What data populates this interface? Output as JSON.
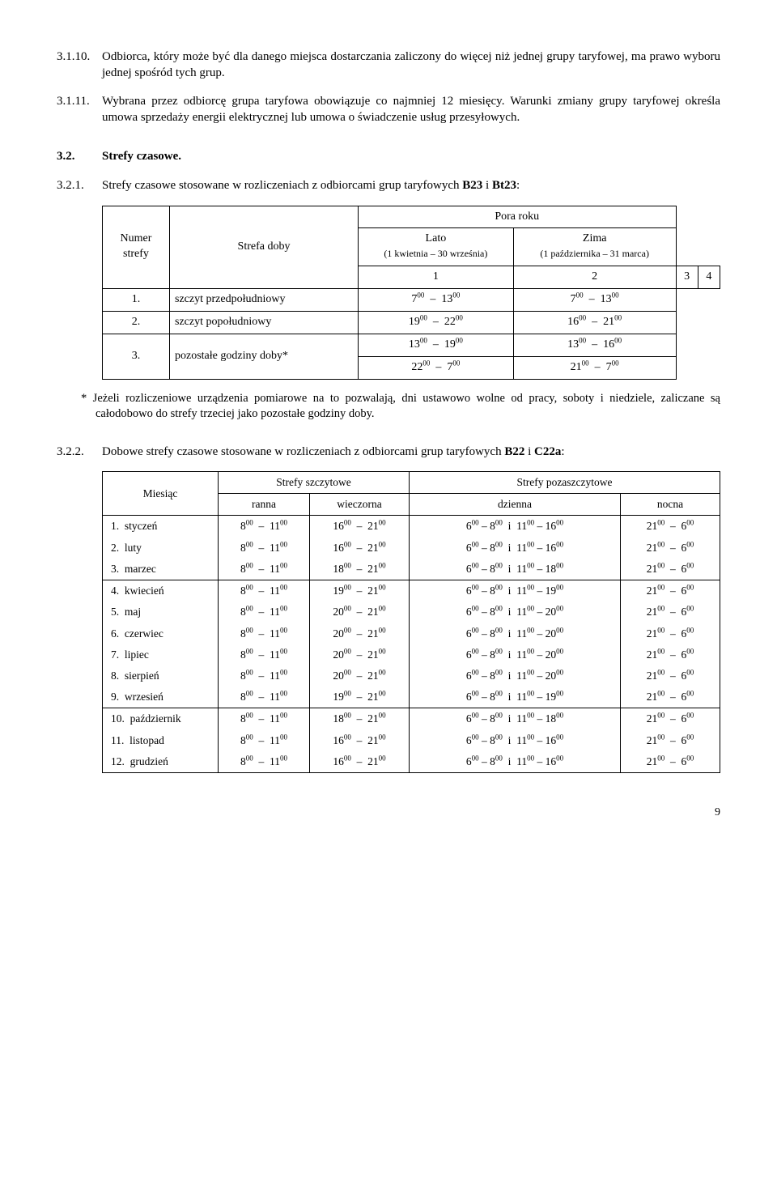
{
  "p_3_1_10": {
    "num": "3.1.10.",
    "text": "Odbiorca, który może być dla danego miejsca dostarczania zaliczony do więcej niż jednej grupy taryfowej, ma prawo wyboru jednej spośród tych grup."
  },
  "p_3_1_11": {
    "num": "3.1.11.",
    "text": "Wybrana przez odbiorcę grupa taryfowa obowiązuje co najmniej 12 miesięcy. Warunki zmiany grupy taryfowej określa umowa sprzedaży energii elektrycznej lub umowa o świadczenie usług przesyłowych."
  },
  "h_3_2": {
    "num": "3.2.",
    "text": "Strefy czasowe."
  },
  "p_3_2_1": {
    "num": "3.2.1.",
    "text_before": "Strefy czasowe stosowane w rozliczeniach z odbiorcami grup taryfowych ",
    "b1": "B23",
    "mid": "  i  ",
    "b2": "Bt23",
    "text_after": ":"
  },
  "t1": {
    "col_numer": "Numer strefy",
    "col_strefa": "Strefa doby",
    "col_pora": "Pora roku",
    "col_lato": "Lato",
    "col_lato_sub": "(1 kwietnia – 30 września)",
    "col_zima": "Zima",
    "col_zima_sub": "(1 października – 31 marca)",
    "hdr": [
      "1",
      "2",
      "3",
      "4"
    ],
    "rows": [
      {
        "n": "1.",
        "label": "szczyt przedpołudniowy",
        "lato_a": "7",
        "lato_b": "13",
        "zima_a": "7",
        "zima_b": "13"
      },
      {
        "n": "2.",
        "label": "szczyt popołudniowy",
        "lato_a": "19",
        "lato_b": "22",
        "zima_a": "16",
        "zima_b": "21"
      },
      {
        "n": "3.",
        "label": "pozostałe godziny doby*",
        "lato_a": "13",
        "lato_b": "19",
        "zima_a": "13",
        "zima_b": "16"
      }
    ],
    "extra": {
      "lato_a": "22",
      "lato_b": "7",
      "zima_a": "21",
      "zima_b": "7"
    }
  },
  "footnote": "*  Jeżeli rozliczeniowe urządzenia pomiarowe na to pozwalają, dni ustawowo wolne od pracy, soboty i niedziele, zaliczane są całodobowo do strefy trzeciej jako pozostałe godziny doby.",
  "p_3_2_2": {
    "num": "3.2.2.",
    "text_before": "Dobowe strefy czasowe stosowane w rozliczeniach z odbiorcami grup taryfowych ",
    "b1": "B22",
    "mid": " i ",
    "b2": "C22a",
    "text_after": ":"
  },
  "t2": {
    "col_miesiac": "Miesiąc",
    "col_szczyt": "Strefy szczytowe",
    "col_poza": "Strefy pozaszczytowe",
    "sub": [
      "ranna",
      "wieczorna",
      "dzienna",
      "nocna"
    ],
    "groups": [
      {
        "rows": [
          {
            "n": "1.",
            "m": "styczeń",
            "r1": "8",
            "r2": "11",
            "w1": "16",
            "w2": "21",
            "d1": "6",
            "d2": "8",
            "d3": "11",
            "d4": "16",
            "n1": "21",
            "n2": "6"
          },
          {
            "n": "2.",
            "m": "luty",
            "r1": "8",
            "r2": "11",
            "w1": "16",
            "w2": "21",
            "d1": "6",
            "d2": "8",
            "d3": "11",
            "d4": "16",
            "n1": "21",
            "n2": "6"
          },
          {
            "n": "3.",
            "m": "marzec",
            "r1": "8",
            "r2": "11",
            "w1": "18",
            "w2": "21",
            "d1": "6",
            "d2": "8",
            "d3": "11",
            "d4": "18",
            "n1": "21",
            "n2": "6"
          }
        ]
      },
      {
        "rows": [
          {
            "n": "4.",
            "m": "kwiecień",
            "r1": "8",
            "r2": "11",
            "w1": "19",
            "w2": "21",
            "d1": "6",
            "d2": "8",
            "d3": "11",
            "d4": "19",
            "n1": "21",
            "n2": "6"
          },
          {
            "n": "5.",
            "m": "maj",
            "r1": "8",
            "r2": "11",
            "w1": "20",
            "w2": "21",
            "d1": "6",
            "d2": "8",
            "d3": "11",
            "d4": "20",
            "n1": "21",
            "n2": "6"
          },
          {
            "n": "6.",
            "m": "czerwiec",
            "r1": "8",
            "r2": "11",
            "w1": "20",
            "w2": "21",
            "d1": "6",
            "d2": "8",
            "d3": "11",
            "d4": "20",
            "n1": "21",
            "n2": "6"
          },
          {
            "n": "7.",
            "m": "lipiec",
            "r1": "8",
            "r2": "11",
            "w1": "20",
            "w2": "21",
            "d1": "6",
            "d2": "8",
            "d3": "11",
            "d4": "20",
            "n1": "21",
            "n2": "6"
          },
          {
            "n": "8.",
            "m": "sierpień",
            "r1": "8",
            "r2": "11",
            "w1": "20",
            "w2": "21",
            "d1": "6",
            "d2": "8",
            "d3": "11",
            "d4": "20",
            "n1": "21",
            "n2": "6"
          },
          {
            "n": "9.",
            "m": "wrzesień",
            "r1": "8",
            "r2": "11",
            "w1": "19",
            "w2": "21",
            "d1": "6",
            "d2": "8",
            "d3": "11",
            "d4": "19",
            "n1": "21",
            "n2": "6"
          }
        ]
      },
      {
        "rows": [
          {
            "n": "10.",
            "m": "październik",
            "r1": "8",
            "r2": "11",
            "w1": "18",
            "w2": "21",
            "d1": "6",
            "d2": "8",
            "d3": "11",
            "d4": "18",
            "n1": "21",
            "n2": "6"
          },
          {
            "n": "11.",
            "m": "listopad",
            "r1": "8",
            "r2": "11",
            "w1": "16",
            "w2": "21",
            "d1": "6",
            "d2": "8",
            "d3": "11",
            "d4": "16",
            "n1": "21",
            "n2": "6"
          },
          {
            "n": "12.",
            "m": "grudzień",
            "r1": "8",
            "r2": "11",
            "w1": "16",
            "w2": "21",
            "d1": "6",
            "d2": "8",
            "d3": "11",
            "d4": "16",
            "n1": "21",
            "n2": "6"
          }
        ]
      }
    ]
  },
  "page": "9"
}
